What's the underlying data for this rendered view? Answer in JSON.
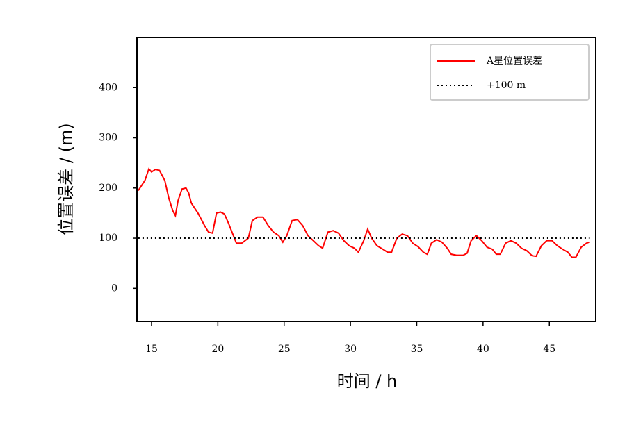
{
  "chart_data": {
    "type": "line",
    "x_label": "时间 / h",
    "y_label": "位置误差 / (m)",
    "series": [
      {
        "name": "A星位置误差",
        "color": "#ff0000",
        "style": "solid",
        "x": [
          14.0,
          14.5,
          14.8,
          15.0,
          15.3,
          15.6,
          16.0,
          16.3,
          16.6,
          16.8,
          17.0,
          17.3,
          17.6,
          17.8,
          18.0,
          18.5,
          19.0,
          19.3,
          19.6,
          19.9,
          20.2,
          20.5,
          20.8,
          21.1,
          21.4,
          21.8,
          22.3,
          22.6,
          23.0,
          23.4,
          23.8,
          24.2,
          24.6,
          24.9,
          25.2,
          25.6,
          26.0,
          26.4,
          26.8,
          27.2,
          27.6,
          27.9,
          28.3,
          28.7,
          29.1,
          29.5,
          29.9,
          30.3,
          30.6,
          31.0,
          31.3,
          31.6,
          32.0,
          32.5,
          32.8,
          33.1,
          33.5,
          33.9,
          34.3,
          34.7,
          35.1,
          35.5,
          35.8,
          36.1,
          36.5,
          36.9,
          37.3,
          37.6,
          38.0,
          38.5,
          38.8,
          39.1,
          39.5,
          39.9,
          40.3,
          40.7,
          41.0,
          41.3,
          41.7,
          42.1,
          42.5,
          42.9,
          43.3,
          43.7,
          44.0,
          44.4,
          44.8,
          45.2,
          45.6,
          46.0,
          46.4,
          46.7,
          47.0,
          47.4,
          47.8,
          48.0
        ],
        "values": [
          195,
          215,
          238,
          232,
          237,
          235,
          215,
          180,
          155,
          145,
          175,
          198,
          200,
          190,
          170,
          150,
          125,
          112,
          110,
          150,
          152,
          148,
          130,
          110,
          90,
          90,
          100,
          135,
          142,
          142,
          125,
          112,
          105,
          92,
          105,
          135,
          137,
          125,
          105,
          95,
          85,
          80,
          112,
          115,
          110,
          95,
          85,
          80,
          72,
          95,
          118,
          100,
          85,
          77,
          72,
          72,
          100,
          108,
          105,
          90,
          83,
          72,
          68,
          90,
          97,
          92,
          80,
          68,
          66,
          66,
          70,
          95,
          105,
          95,
          82,
          78,
          68,
          68,
          90,
          95,
          90,
          80,
          75,
          65,
          64,
          85,
          95,
          95,
          85,
          78,
          72,
          62,
          62,
          82,
          90,
          92
        ]
      },
      {
        "name": "+100 m",
        "color": "#000000",
        "style": "dotted",
        "x": [
          14.0,
          48.0
        ],
        "values": [
          100,
          100
        ]
      }
    ],
    "xlim": [
      13.9,
      48.5
    ],
    "ylim": [
      -66,
      500
    ],
    "xticks": [
      15,
      20,
      25,
      30,
      35,
      40,
      45
    ],
    "yticks": [
      0,
      100,
      200,
      300,
      400
    ],
    "legend": "upper right"
  }
}
